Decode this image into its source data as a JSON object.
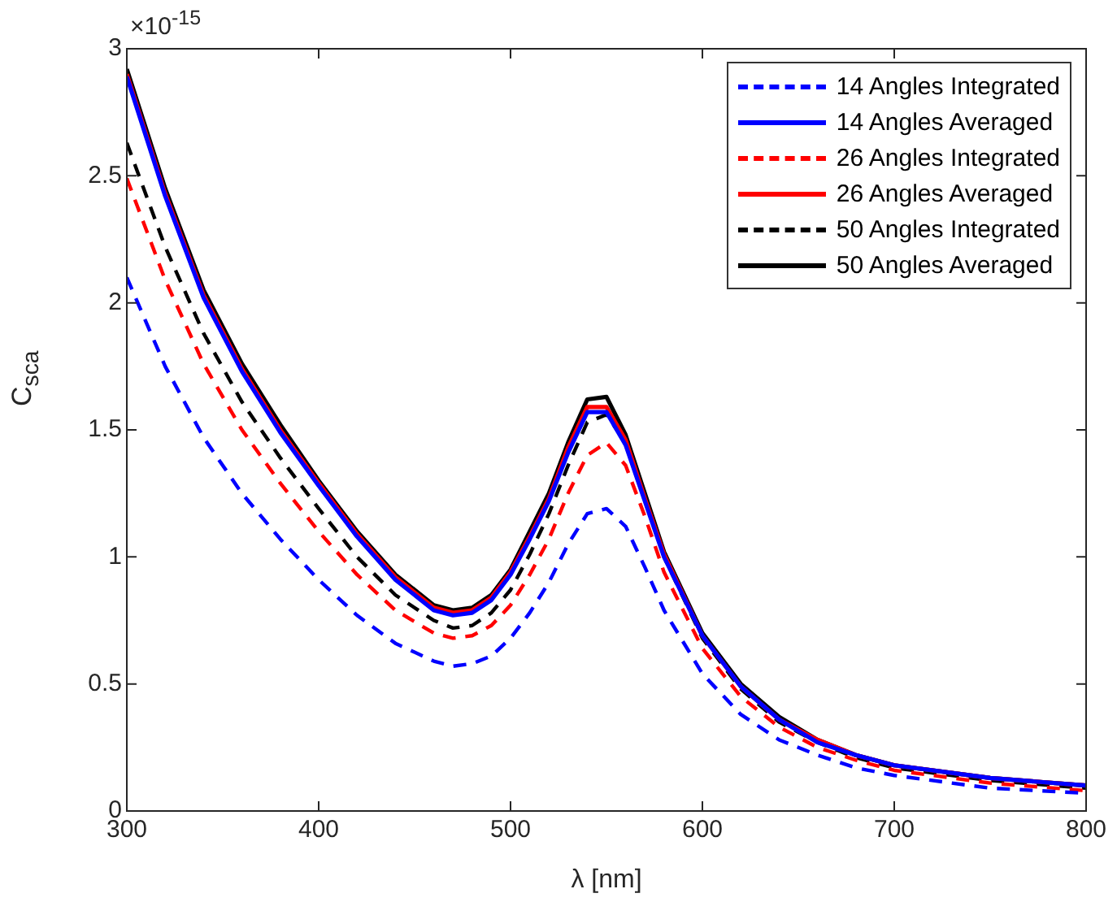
{
  "chart_data": {
    "type": "line",
    "xlabel": "λ [nm]",
    "ylabel": "C$_{sca}$",
    "annotations": [
      "×10$^{-15}$"
    ],
    "x": [
      300,
      320,
      340,
      360,
      380,
      400,
      420,
      440,
      460,
      470,
      480,
      490,
      500,
      510,
      520,
      530,
      540,
      550,
      560,
      570,
      580,
      600,
      620,
      640,
      660,
      680,
      700,
      750,
      800
    ],
    "xlim": [
      300,
      800
    ],
    "xticks": [
      300,
      400,
      500,
      600,
      700,
      800
    ],
    "ylim": [
      0,
      3
    ],
    "yticks": [
      0,
      0.5,
      1,
      1.5,
      2,
      2.5,
      3
    ],
    "grid": false,
    "legend": "top right",
    "marker": "none",
    "series": [
      {
        "name": "14 Angles Integrated",
        "color": "#0000ff",
        "line_style": "dashed",
        "values": [
          2.1,
          1.75,
          1.47,
          1.25,
          1.07,
          0.91,
          0.77,
          0.66,
          0.59,
          0.57,
          0.58,
          0.61,
          0.68,
          0.78,
          0.9,
          1.05,
          1.17,
          1.19,
          1.12,
          0.96,
          0.79,
          0.54,
          0.38,
          0.28,
          0.22,
          0.17,
          0.14,
          0.09,
          0.07
        ]
      },
      {
        "name": "14 Angles Averaged",
        "color": "#0000ff",
        "line_style": "solid",
        "values": [
          2.89,
          2.42,
          2.02,
          1.73,
          1.49,
          1.28,
          1.08,
          0.91,
          0.79,
          0.77,
          0.78,
          0.83,
          0.93,
          1.07,
          1.22,
          1.41,
          1.57,
          1.57,
          1.44,
          1.22,
          1.0,
          0.69,
          0.49,
          0.36,
          0.27,
          0.22,
          0.18,
          0.13,
          0.1
        ]
      },
      {
        "name": "26 Angles Integrated",
        "color": "#ff0000",
        "line_style": "dashed",
        "values": [
          2.49,
          2.09,
          1.76,
          1.5,
          1.29,
          1.1,
          0.93,
          0.79,
          0.7,
          0.68,
          0.69,
          0.73,
          0.81,
          0.93,
          1.07,
          1.25,
          1.4,
          1.45,
          1.36,
          1.16,
          0.94,
          0.64,
          0.45,
          0.33,
          0.25,
          0.2,
          0.16,
          0.11,
          0.08
        ]
      },
      {
        "name": "26 Angles Averaged",
        "color": "#ff0000",
        "line_style": "solid",
        "values": [
          2.9,
          2.43,
          2.03,
          1.74,
          1.5,
          1.29,
          1.09,
          0.92,
          0.8,
          0.78,
          0.79,
          0.84,
          0.94,
          1.08,
          1.23,
          1.43,
          1.59,
          1.59,
          1.46,
          1.23,
          1.01,
          0.69,
          0.49,
          0.36,
          0.28,
          0.22,
          0.18,
          0.13,
          0.1
        ]
      },
      {
        "name": "50 Angles Integrated",
        "color": "#000000",
        "line_style": "dashed",
        "values": [
          2.63,
          2.22,
          1.88,
          1.61,
          1.39,
          1.19,
          1.0,
          0.85,
          0.75,
          0.72,
          0.73,
          0.78,
          0.87,
          1.01,
          1.17,
          1.36,
          1.53,
          1.56,
          1.45,
          1.23,
          1.0,
          0.68,
          0.48,
          0.35,
          0.27,
          0.21,
          0.17,
          0.12,
          0.09
        ]
      },
      {
        "name": "50 Angles Averaged",
        "color": "#000000",
        "line_style": "solid",
        "values": [
          2.92,
          2.45,
          2.05,
          1.76,
          1.52,
          1.3,
          1.1,
          0.93,
          0.81,
          0.79,
          0.8,
          0.85,
          0.95,
          1.1,
          1.25,
          1.45,
          1.62,
          1.63,
          1.48,
          1.25,
          1.02,
          0.7,
          0.5,
          0.37,
          0.28,
          0.22,
          0.18,
          0.13,
          0.1
        ]
      }
    ]
  }
}
